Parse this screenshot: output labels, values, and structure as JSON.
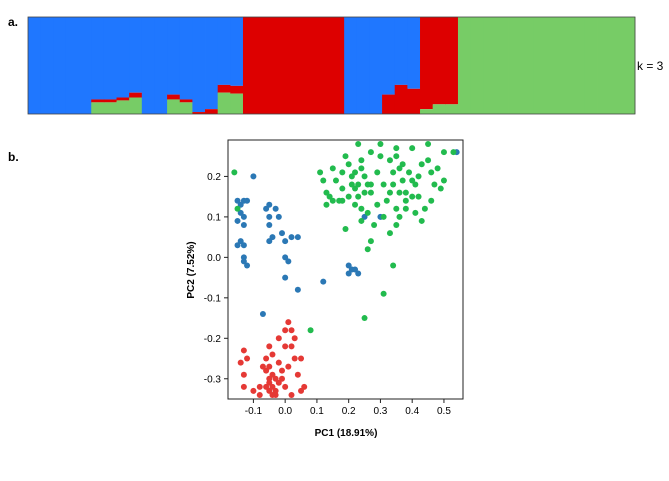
{
  "chart_data": [
    {
      "type": "bar",
      "stacked": true,
      "panel_label": "a.",
      "annotation": "k = 3",
      "ylim": [
        0,
        1
      ],
      "colors": [
        "#1f77ff",
        "#dd0000",
        "#77cc66"
      ],
      "num_samples": 48,
      "series": [
        {
          "color": "#1f77ff",
          "values": [
            1,
            1,
            1,
            1,
            1,
            0.85,
            0.85,
            0.83,
            0.78,
            1,
            1,
            0.8,
            0.85,
            0.98,
            0.95,
            0.7,
            0.71,
            0,
            0,
            0,
            0,
            0,
            0,
            0,
            0,
            1,
            1,
            1,
            0.8,
            0.7,
            0.74,
            0,
            0,
            0,
            0,
            0,
            0,
            0,
            0,
            0,
            0,
            0,
            0,
            0,
            0,
            0,
            0,
            0
          ]
        },
        {
          "color": "#dd0000",
          "values": [
            0,
            0,
            0,
            0,
            0,
            0.03,
            0.03,
            0.03,
            0.05,
            0,
            0,
            0.05,
            0.03,
            0.02,
            0.05,
            0.08,
            0.08,
            1,
            1,
            1,
            1,
            1,
            1,
            1,
            1,
            0,
            0,
            0,
            0.2,
            0.3,
            0.26,
            0.95,
            0.9,
            0.9,
            0,
            0,
            0,
            0,
            0,
            0,
            0,
            0,
            0,
            0,
            0,
            0,
            0,
            0
          ]
        },
        {
          "color": "#77cc66",
          "values": [
            0,
            0,
            0,
            0,
            0,
            0.12,
            0.12,
            0.14,
            0.17,
            0,
            0,
            0.15,
            0.12,
            0,
            0,
            0.22,
            0.21,
            0,
            0,
            0,
            0,
            0,
            0,
            0,
            0,
            0,
            0,
            0,
            0,
            0,
            0,
            0.05,
            0.1,
            0.1,
            1,
            1,
            1,
            1,
            1,
            1,
            1,
            1,
            1,
            1,
            1,
            1,
            1,
            1
          ]
        }
      ]
    },
    {
      "type": "scatter",
      "panel_label": "b.",
      "xlabel": "PC1 (18.91%)",
      "ylabel": "PC2 (7.52%)",
      "xlim": [
        -0.18,
        0.56
      ],
      "ylim": [
        -0.35,
        0.29
      ],
      "xticks": [
        -0.1,
        0.0,
        0.1,
        0.2,
        0.3,
        0.4,
        0.5
      ],
      "xtick_labels": [
        "-0.1",
        "0.0",
        "0.1",
        "0.2",
        "0.3",
        "0.4",
        "0.5"
      ],
      "yticks": [
        -0.3,
        -0.2,
        -0.1,
        0.0,
        0.1,
        0.2
      ],
      "ytick_labels": [
        "-0.3",
        "-0.2",
        "-0.1",
        "0.0",
        "0.1",
        "0.2"
      ],
      "grid": false,
      "legend": "none",
      "groups": [
        {
          "color": "#e53935",
          "points": [
            [
              -0.05,
              -0.33
            ],
            [
              -0.04,
              -0.32
            ],
            [
              -0.03,
              -0.33
            ],
            [
              -0.06,
              -0.32
            ],
            [
              -0.02,
              -0.31
            ],
            [
              -0.05,
              -0.3
            ],
            [
              -0.04,
              -0.29
            ],
            [
              -0.06,
              -0.28
            ],
            [
              -0.03,
              -0.34
            ],
            [
              -0.08,
              -0.32
            ],
            [
              -0.1,
              -0.33
            ],
            [
              -0.13,
              -0.32
            ],
            [
              -0.13,
              -0.29
            ],
            [
              -0.14,
              -0.26
            ],
            [
              -0.12,
              -0.25
            ],
            [
              -0.13,
              -0.23
            ],
            [
              -0.07,
              -0.27
            ],
            [
              -0.05,
              -0.27
            ],
            [
              -0.02,
              -0.26
            ],
            [
              -0.01,
              -0.3
            ],
            [
              0.0,
              -0.32
            ],
            [
              0.02,
              -0.34
            ],
            [
              0.05,
              -0.33
            ],
            [
              0.06,
              -0.32
            ],
            [
              0.04,
              -0.29
            ],
            [
              0.01,
              -0.27
            ],
            [
              0.03,
              -0.25
            ],
            [
              0.05,
              -0.25
            ],
            [
              0.0,
              -0.22
            ],
            [
              0.02,
              -0.22
            ],
            [
              0.0,
              -0.18
            ],
            [
              0.02,
              -0.18
            ],
            [
              -0.02,
              -0.2
            ],
            [
              -0.05,
              -0.22
            ],
            [
              -0.06,
              -0.25
            ],
            [
              -0.04,
              -0.24
            ],
            [
              0.03,
              -0.2
            ],
            [
              0.01,
              -0.16
            ],
            [
              -0.01,
              -0.28
            ],
            [
              -0.08,
              -0.34
            ],
            [
              -0.04,
              -0.34
            ],
            [
              -0.05,
              -0.31
            ],
            [
              -0.03,
              -0.3
            ]
          ]
        },
        {
          "color": "#2b78b5",
          "points": [
            [
              -0.15,
              0.14
            ],
            [
              -0.14,
              0.13
            ],
            [
              -0.13,
              0.14
            ],
            [
              -0.12,
              0.14
            ],
            [
              -0.14,
              0.11
            ],
            [
              -0.13,
              0.1
            ],
            [
              -0.15,
              0.09
            ],
            [
              -0.13,
              0.08
            ],
            [
              -0.14,
              0.04
            ],
            [
              -0.13,
              0.03
            ],
            [
              -0.15,
              0.03
            ],
            [
              -0.13,
              0.0
            ],
            [
              -0.12,
              -0.02
            ],
            [
              -0.13,
              -0.01
            ],
            [
              -0.06,
              0.12
            ],
            [
              -0.05,
              0.13
            ],
            [
              -0.03,
              0.12
            ],
            [
              -0.02,
              0.1
            ],
            [
              -0.05,
              0.1
            ],
            [
              -0.05,
              0.08
            ],
            [
              -0.04,
              0.05
            ],
            [
              -0.05,
              0.04
            ],
            [
              -0.01,
              0.06
            ],
            [
              0.0,
              0.04
            ],
            [
              0.02,
              0.05
            ],
            [
              0.04,
              0.05
            ],
            [
              0.0,
              0.0
            ],
            [
              0.01,
              -0.01
            ],
            [
              0.0,
              -0.05
            ],
            [
              -0.1,
              0.2
            ],
            [
              -0.07,
              -0.14
            ],
            [
              0.04,
              -0.08
            ],
            [
              0.12,
              -0.06
            ],
            [
              0.2,
              -0.04
            ],
            [
              0.21,
              -0.03
            ],
            [
              0.22,
              -0.03
            ],
            [
              0.23,
              -0.04
            ],
            [
              0.2,
              -0.02
            ],
            [
              0.25,
              0.1
            ],
            [
              0.3,
              0.1
            ],
            [
              0.54,
              0.26
            ]
          ]
        },
        {
          "color": "#22bb4e",
          "points": [
            [
              -0.16,
              0.21
            ],
            [
              -0.15,
              0.12
            ],
            [
              0.15,
              0.22
            ],
            [
              0.18,
              0.21
            ],
            [
              0.21,
              0.2
            ],
            [
              0.21,
              0.18
            ],
            [
              0.23,
              0.18
            ],
            [
              0.22,
              0.21
            ],
            [
              0.24,
              0.22
            ],
            [
              0.25,
              0.2
            ],
            [
              0.26,
              0.18
            ],
            [
              0.27,
              0.16
            ],
            [
              0.27,
              0.26
            ],
            [
              0.3,
              0.25
            ],
            [
              0.33,
              0.24
            ],
            [
              0.35,
              0.25
            ],
            [
              0.36,
              0.22
            ],
            [
              0.37,
              0.19
            ],
            [
              0.38,
              0.16
            ],
            [
              0.4,
              0.15
            ],
            [
              0.41,
              0.18
            ],
            [
              0.42,
              0.2
            ],
            [
              0.43,
              0.23
            ],
            [
              0.45,
              0.24
            ],
            [
              0.46,
              0.21
            ],
            [
              0.47,
              0.18
            ],
            [
              0.49,
              0.17
            ],
            [
              0.5,
              0.19
            ],
            [
              0.45,
              0.28
            ],
            [
              0.4,
              0.27
            ],
            [
              0.35,
              0.27
            ],
            [
              0.3,
              0.28
            ],
            [
              0.23,
              0.28
            ],
            [
              0.24,
              0.24
            ],
            [
              0.19,
              0.25
            ],
            [
              0.16,
              0.19
            ],
            [
              0.14,
              0.15
            ],
            [
              0.13,
              0.13
            ],
            [
              0.15,
              0.14
            ],
            [
              0.18,
              0.14
            ],
            [
              0.2,
              0.15
            ],
            [
              0.22,
              0.13
            ],
            [
              0.24,
              0.12
            ],
            [
              0.26,
              0.11
            ],
            [
              0.29,
              0.13
            ],
            [
              0.32,
              0.14
            ],
            [
              0.31,
              0.18
            ],
            [
              0.34,
              0.18
            ],
            [
              0.36,
              0.16
            ],
            [
              0.38,
              0.12
            ],
            [
              0.41,
              0.11
            ],
            [
              0.44,
              0.12
            ],
            [
              0.46,
              0.14
            ],
            [
              0.43,
              0.09
            ],
            [
              0.35,
              0.08
            ],
            [
              0.33,
              0.06
            ],
            [
              0.36,
              0.1
            ],
            [
              0.38,
              0.14
            ],
            [
              0.4,
              0.19
            ],
            [
              0.29,
              0.21
            ],
            [
              0.33,
              0.16
            ],
            [
              0.12,
              0.19
            ],
            [
              0.11,
              0.21
            ],
            [
              0.2,
              0.23
            ],
            [
              0.22,
              0.17
            ],
            [
              0.31,
              0.1
            ],
            [
              0.28,
              0.08
            ],
            [
              0.24,
              0.09
            ],
            [
              0.27,
              0.04
            ],
            [
              0.26,
              0.02
            ],
            [
              0.19,
              0.07
            ],
            [
              0.17,
              0.14
            ],
            [
              0.13,
              0.16
            ],
            [
              0.34,
              0.21
            ],
            [
              0.37,
              0.23
            ],
            [
              0.48,
              0.22
            ],
            [
              0.5,
              0.26
            ],
            [
              0.53,
              0.26
            ],
            [
              0.39,
              0.21
            ],
            [
              0.42,
              0.15
            ],
            [
              0.25,
              0.16
            ],
            [
              0.35,
              0.12
            ],
            [
              0.31,
              -0.09
            ],
            [
              0.34,
              -0.02
            ],
            [
              0.25,
              -0.15
            ],
            [
              0.08,
              -0.18
            ],
            [
              0.27,
              0.18
            ],
            [
              0.23,
              0.15
            ],
            [
              0.18,
              0.17
            ]
          ]
        }
      ]
    }
  ]
}
